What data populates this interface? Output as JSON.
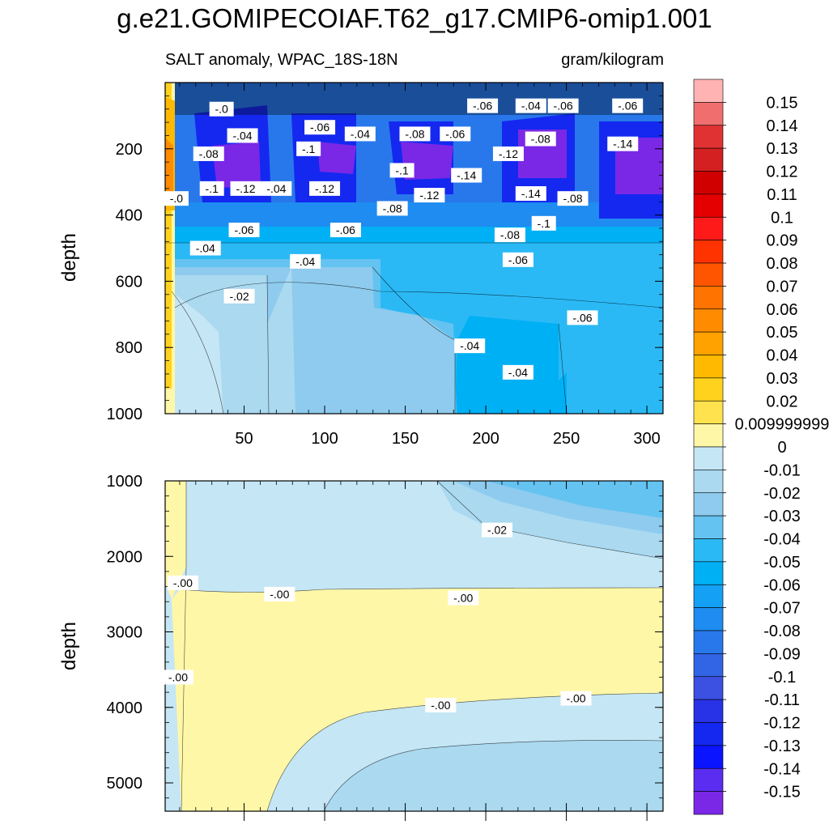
{
  "chart_data": {
    "type": "heatmap",
    "title": "g.e21.GOMIPECOIAF.T62_g17.CMIP6-omip1.001",
    "subtitle_left": "SALT anomaly, WPAC_18S-18N",
    "subtitle_right": "gram/kilogram",
    "panels": [
      {
        "name": "upper",
        "ylabel": "depth",
        "xlim": [
          1,
          310
        ],
        "ylim": [
          0,
          1000
        ],
        "y_reversed": true,
        "xticks": [
          50,
          100,
          150,
          200,
          250,
          300
        ],
        "yticks": [
          200,
          400,
          600,
          800,
          1000
        ],
        "contour_labels": [
          {
            "text": "-.0",
            "x": 36,
            "y": 80
          },
          {
            "text": "-.06",
            "x": 97,
            "y": 135
          },
          {
            "text": "-.04",
            "x": 122,
            "y": 155
          },
          {
            "text": "-.08",
            "x": 156,
            "y": 155
          },
          {
            "text": "-.06",
            "x": 181,
            "y": 155
          },
          {
            "text": "-.06",
            "x": 198,
            "y": 70
          },
          {
            "text": "-.04",
            "x": 228,
            "y": 70
          },
          {
            "text": "-.06",
            "x": 248,
            "y": 70
          },
          {
            "text": "-.06",
            "x": 288,
            "y": 70
          },
          {
            "text": "-.04",
            "x": 49,
            "y": 160
          },
          {
            "text": "-.08",
            "x": 28,
            "y": 215
          },
          {
            "text": "-.1",
            "x": 90,
            "y": 200
          },
          {
            "text": "-.08",
            "x": 234,
            "y": 170
          },
          {
            "text": "-.12",
            "x": 214,
            "y": 215
          },
          {
            "text": "-.14",
            "x": 285,
            "y": 185
          },
          {
            "text": "-.1",
            "x": 148,
            "y": 265
          },
          {
            "text": "-.14",
            "x": 188,
            "y": 280
          },
          {
            "text": "-.1",
            "x": 30,
            "y": 320
          },
          {
            "text": "-.12",
            "x": 51,
            "y": 320
          },
          {
            "text": "-.04",
            "x": 70,
            "y": 320
          },
          {
            "text": "-.12",
            "x": 100,
            "y": 320
          },
          {
            "text": "-.0",
            "x": 8,
            "y": 350
          },
          {
            "text": "-.12",
            "x": 165,
            "y": 340
          },
          {
            "text": "-.14",
            "x": 228,
            "y": 335
          },
          {
            "text": "-.08",
            "x": 254,
            "y": 350
          },
          {
            "text": "-.08",
            "x": 142,
            "y": 380
          },
          {
            "text": "-.1",
            "x": 236,
            "y": 425
          },
          {
            "text": "-.06",
            "x": 50,
            "y": 445
          },
          {
            "text": "-.06",
            "x": 113,
            "y": 445
          },
          {
            "text": "-.08",
            "x": 215,
            "y": 460
          },
          {
            "text": "-.04",
            "x": 26,
            "y": 500
          },
          {
            "text": "-.04",
            "x": 88,
            "y": 540
          },
          {
            "text": "-.06",
            "x": 220,
            "y": 535
          },
          {
            "text": "-.02",
            "x": 47,
            "y": 645
          },
          {
            "text": "-.06",
            "x": 260,
            "y": 710
          },
          {
            "text": "-.04",
            "x": 190,
            "y": 795
          },
          {
            "text": "-.04",
            "x": 220,
            "y": 875
          }
        ]
      },
      {
        "name": "lower",
        "ylabel": "depth",
        "xlim": [
          1,
          310
        ],
        "ylim": [
          1000,
          5375
        ],
        "y_reversed": true,
        "xticks": [
          50,
          100,
          150,
          200,
          250,
          300
        ],
        "yticks": [
          1000,
          2000,
          3000,
          4000,
          5000
        ],
        "contour_labels": [
          {
            "text": "-.02",
            "x": 207,
            "y": 1650
          },
          {
            "text": "-.00",
            "x": 12,
            "y": 2350
          },
          {
            "text": "-.00",
            "x": 72,
            "y": 2500
          },
          {
            "text": "-.00",
            "x": 186,
            "y": 2550
          },
          {
            "text": "-.00",
            "x": 9,
            "y": 3600
          },
          {
            "text": "-.00",
            "x": 172,
            "y": 3970
          },
          {
            "text": "-.00",
            "x": 256,
            "y": 3880
          }
        ]
      }
    ],
    "colorbar": {
      "labels": [
        "0.15",
        "0.14",
        "0.13",
        "0.12",
        "0.11",
        "0.1",
        "0.09",
        "0.08",
        "0.07",
        "0.06",
        "0.05",
        "0.04",
        "0.03",
        "0.02",
        "0.009999999",
        "0",
        "-0.01",
        "-0.02",
        "-0.03",
        "-0.04",
        "-0.05",
        "-0.06",
        "-0.07",
        "-0.08",
        "-0.09",
        "-0.1",
        "-0.11",
        "-0.12",
        "-0.13",
        "-0.14",
        "-0.15"
      ],
      "colors": [
        "#ffb3b3",
        "#f06e6e",
        "#e03232",
        "#d42020",
        "#d00000",
        "#e40000",
        "#ff1a1a",
        "#ff3300",
        "#ff5500",
        "#ff7300",
        "#ff8c00",
        "#ffa200",
        "#ffb900",
        "#ffd21e",
        "#ffe24d",
        "#fff7a8",
        "#c5e6f5",
        "#aad9f0",
        "#8ecbee",
        "#64c3f0",
        "#2ab9f5",
        "#00b0f5",
        "#14a0f5",
        "#1e8cf0",
        "#2878eb",
        "#3264e6",
        "#3c50e1",
        "#2832e6",
        "#1428f0",
        "#0a14ff",
        "#5a2df0",
        "#7a28e6"
      ]
    }
  }
}
